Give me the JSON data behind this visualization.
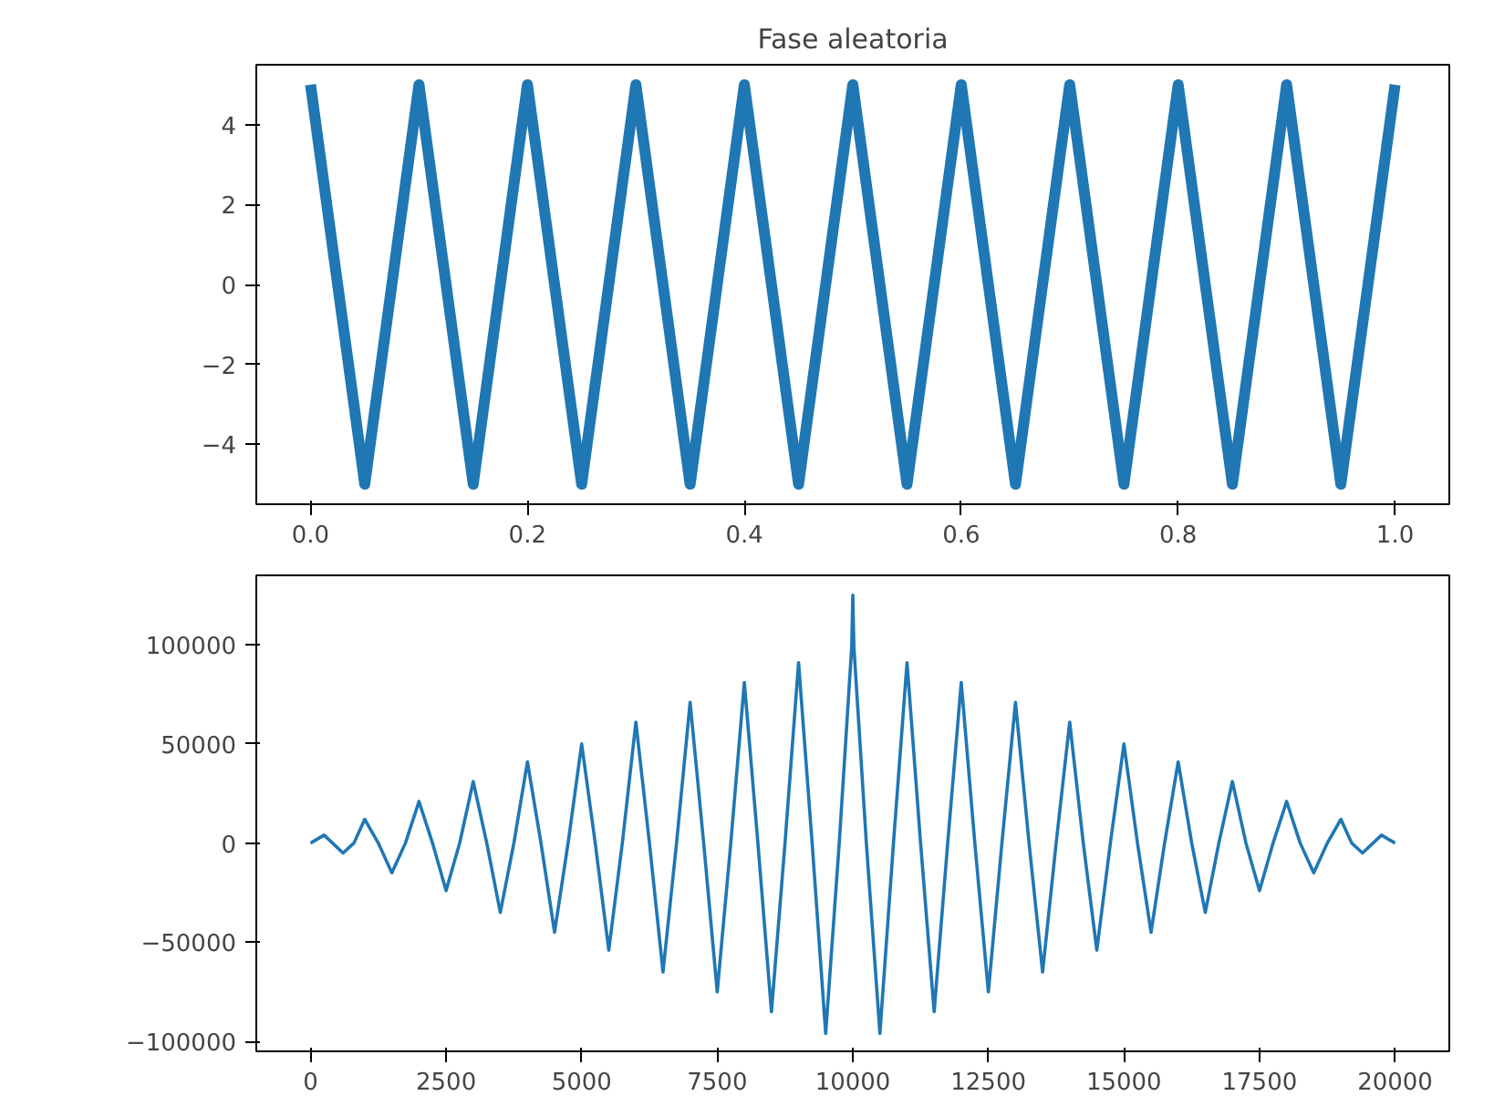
{
  "chart_data": [
    {
      "type": "line",
      "title": "Fase aleatoria",
      "color": "#1f77b4",
      "x": [
        0,
        0.025,
        0.05,
        0.075,
        0.1,
        0.125,
        0.15,
        0.175,
        0.2,
        0.225,
        0.25,
        0.275,
        0.3,
        0.325,
        0.35,
        0.375,
        0.4,
        0.425,
        0.45,
        0.475,
        0.5,
        0.525,
        0.55,
        0.575,
        0.6,
        0.625,
        0.65,
        0.675,
        0.7,
        0.725,
        0.75,
        0.775,
        0.8,
        0.825,
        0.85,
        0.875,
        0.9,
        0.925,
        0.95,
        0.975,
        1.0
      ],
      "values": [
        5,
        0,
        -5,
        0,
        5,
        0,
        -5,
        0,
        5,
        0,
        -5,
        0,
        5,
        0,
        -5,
        0,
        5,
        0,
        -5,
        0,
        5,
        0,
        -5,
        0,
        5,
        0,
        -5,
        0,
        5,
        0,
        -5,
        0,
        5,
        0,
        -5,
        0,
        5,
        0,
        -5,
        0,
        5
      ],
      "xlim": [
        -0.05,
        1.05
      ],
      "ylim": [
        -5.5,
        5.5
      ],
      "xticks": [
        {
          "value": 0,
          "label": "0.0"
        },
        0.2,
        0.4,
        0.6,
        0.8,
        {
          "value": 1,
          "label": "1.0"
        }
      ],
      "yticks": [
        {
          "value": -4,
          "label": "−4"
        },
        {
          "value": -2,
          "label": "−2"
        },
        0,
        2,
        4
      ]
    },
    {
      "type": "line",
      "color": "#1f77b4",
      "x": [
        0,
        250,
        600,
        800,
        1000,
        1250,
        1500,
        1750,
        2000,
        2250,
        2500,
        2750,
        3000,
        3250,
        3500,
        3750,
        4000,
        4250,
        4500,
        4750,
        5000,
        5250,
        5500,
        5750,
        6000,
        6250,
        6500,
        6750,
        7000,
        7250,
        7500,
        7750,
        8000,
        8250,
        8500,
        8750,
        9000,
        9250,
        9500,
        9750,
        9980,
        10000,
        10020,
        10250,
        10500,
        10750,
        11000,
        11250,
        11500,
        11750,
        12000,
        12250,
        12500,
        12750,
        13000,
        13250,
        13500,
        13750,
        14000,
        14250,
        14500,
        14750,
        15000,
        15250,
        15500,
        15750,
        16000,
        16250,
        16500,
        16750,
        17000,
        17250,
        17500,
        17750,
        18000,
        18250,
        18500,
        18750,
        19000,
        19200,
        19400,
        19750,
        20000
      ],
      "values": [
        0,
        4000,
        -5000,
        0,
        12000,
        0,
        -15000,
        0,
        21000,
        0,
        -24000,
        0,
        31000,
        0,
        -35000,
        0,
        41000,
        0,
        -45000,
        0,
        50000,
        0,
        -54000,
        0,
        61000,
        0,
        -65000,
        0,
        71000,
        0,
        -75000,
        0,
        81000,
        0,
        -85000,
        0,
        91000,
        0,
        -96000,
        0,
        99000,
        125000,
        99000,
        0,
        -96000,
        0,
        91000,
        0,
        -85000,
        0,
        81000,
        0,
        -75000,
        0,
        71000,
        0,
        -65000,
        0,
        61000,
        0,
        -54000,
        0,
        50000,
        0,
        -45000,
        0,
        41000,
        0,
        -35000,
        0,
        31000,
        0,
        -24000,
        0,
        21000,
        0,
        -15000,
        0,
        12000,
        0,
        -5000,
        4000,
        0
      ],
      "xlim": [
        -1000,
        21000
      ],
      "ylim": [
        -105000,
        135000
      ],
      "xticks": [
        0,
        2500,
        5000,
        7500,
        10000,
        12500,
        15000,
        17500,
        20000
      ],
      "yticks": [
        {
          "value": -100000,
          "label": "−100000"
        },
        {
          "value": -50000,
          "label": "−50000"
        },
        0,
        50000,
        100000
      ]
    }
  ]
}
